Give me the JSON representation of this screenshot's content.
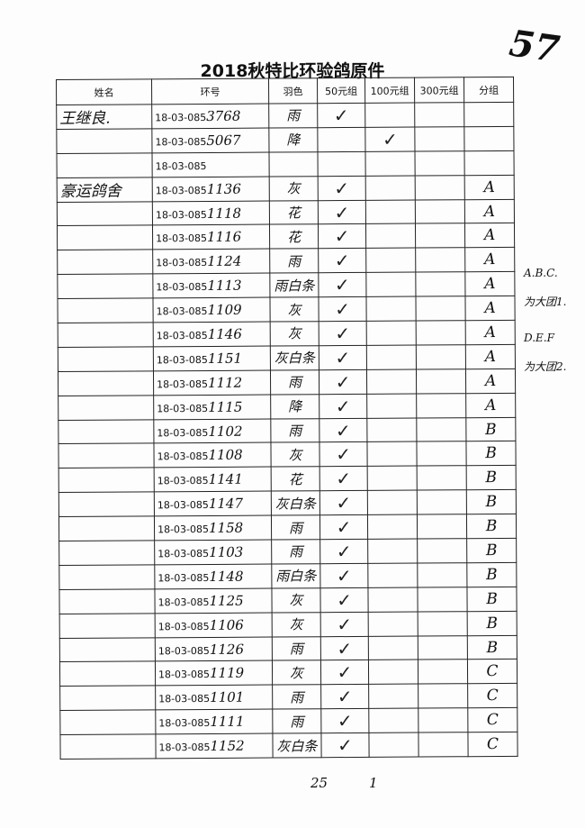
{
  "page_number": "57",
  "title": "2018秋特比环验鸽原件",
  "headers": [
    "姓名",
    "环号",
    "羽色",
    "50元组",
    "100元组",
    "300元组",
    "分组"
  ],
  "ring_prefix": "18-03-085",
  "rows": [
    {
      "name": "王继良.",
      "ring": "3768",
      "color": "雨",
      "g50": "✓",
      "g100": "",
      "g300": "",
      "group": ""
    },
    {
      "name": "",
      "ring": "5067",
      "color": "降",
      "g50": "",
      "g100": "✓",
      "g300": "",
      "group": ""
    },
    {
      "name": "",
      "ring": "",
      "color": "",
      "g50": "",
      "g100": "",
      "g300": "",
      "group": ""
    },
    {
      "name": "豪运鸽舍",
      "ring": "1136",
      "color": "灰",
      "g50": "✓",
      "g100": "",
      "g300": "",
      "group": "A"
    },
    {
      "name": "",
      "ring": "1118",
      "color": "花",
      "g50": "✓",
      "g100": "",
      "g300": "",
      "group": "A"
    },
    {
      "name": "",
      "ring": "1116",
      "color": "花",
      "g50": "✓",
      "g100": "",
      "g300": "",
      "group": "A"
    },
    {
      "name": "",
      "ring": "1124",
      "color": "雨",
      "g50": "✓",
      "g100": "",
      "g300": "",
      "group": "A"
    },
    {
      "name": "",
      "ring": "1113",
      "color": "雨白条",
      "g50": "✓",
      "g100": "",
      "g300": "",
      "group": "A"
    },
    {
      "name": "",
      "ring": "1109",
      "color": "灰",
      "g50": "✓",
      "g100": "",
      "g300": "",
      "group": "A"
    },
    {
      "name": "",
      "ring": "1146",
      "color": "灰",
      "g50": "✓",
      "g100": "",
      "g300": "",
      "group": "A"
    },
    {
      "name": "",
      "ring": "1151",
      "color": "灰白条",
      "g50": "✓",
      "g100": "",
      "g300": "",
      "group": "A"
    },
    {
      "name": "",
      "ring": "1112",
      "color": "雨",
      "g50": "✓",
      "g100": "",
      "g300": "",
      "group": "A"
    },
    {
      "name": "",
      "ring": "1115",
      "color": "降",
      "g50": "✓",
      "g100": "",
      "g300": "",
      "group": "A"
    },
    {
      "name": "",
      "ring": "1102",
      "color": "雨",
      "g50": "✓",
      "g100": "",
      "g300": "",
      "group": "B"
    },
    {
      "name": "",
      "ring": "1108",
      "color": "灰",
      "g50": "✓",
      "g100": "",
      "g300": "",
      "group": "B"
    },
    {
      "name": "",
      "ring": "1141",
      "color": "花",
      "g50": "✓",
      "g100": "",
      "g300": "",
      "group": "B"
    },
    {
      "name": "",
      "ring": "1147",
      "color": "灰白条",
      "g50": "✓",
      "g100": "",
      "g300": "",
      "group": "B"
    },
    {
      "name": "",
      "ring": "1158",
      "color": "雨",
      "g50": "✓",
      "g100": "",
      "g300": "",
      "group": "B"
    },
    {
      "name": "",
      "ring": "1103",
      "color": "雨",
      "g50": "✓",
      "g100": "",
      "g300": "",
      "group": "B"
    },
    {
      "name": "",
      "ring": "1148",
      "color": "雨白条",
      "g50": "✓",
      "g100": "",
      "g300": "",
      "group": "B"
    },
    {
      "name": "",
      "ring": "1125",
      "color": "灰",
      "g50": "✓",
      "g100": "",
      "g300": "",
      "group": "B"
    },
    {
      "name": "",
      "ring": "1106",
      "color": "灰",
      "g50": "✓",
      "g100": "",
      "g300": "",
      "group": "B"
    },
    {
      "name": "",
      "ring": "1126",
      "color": "雨",
      "g50": "✓",
      "g100": "",
      "g300": "",
      "group": "B"
    },
    {
      "name": "",
      "ring": "1119",
      "color": "灰",
      "g50": "✓",
      "g100": "",
      "g300": "",
      "group": "C"
    },
    {
      "name": "",
      "ring": "1101",
      "color": "雨",
      "g50": "✓",
      "g100": "",
      "g300": "",
      "group": "C"
    },
    {
      "name": "",
      "ring": "1111",
      "color": "雨",
      "g50": "✓",
      "g100": "",
      "g300": "",
      "group": "C"
    },
    {
      "name": "",
      "ring": "1152",
      "color": "灰白条",
      "g50": "✓",
      "g100": "",
      "g300": "",
      "group": "C"
    }
  ],
  "side_note": [
    "A.B.C.",
    "为大团1.",
    "D.E.F",
    "为大团2."
  ],
  "footer": {
    "total_50": "25",
    "total_100": "1"
  }
}
